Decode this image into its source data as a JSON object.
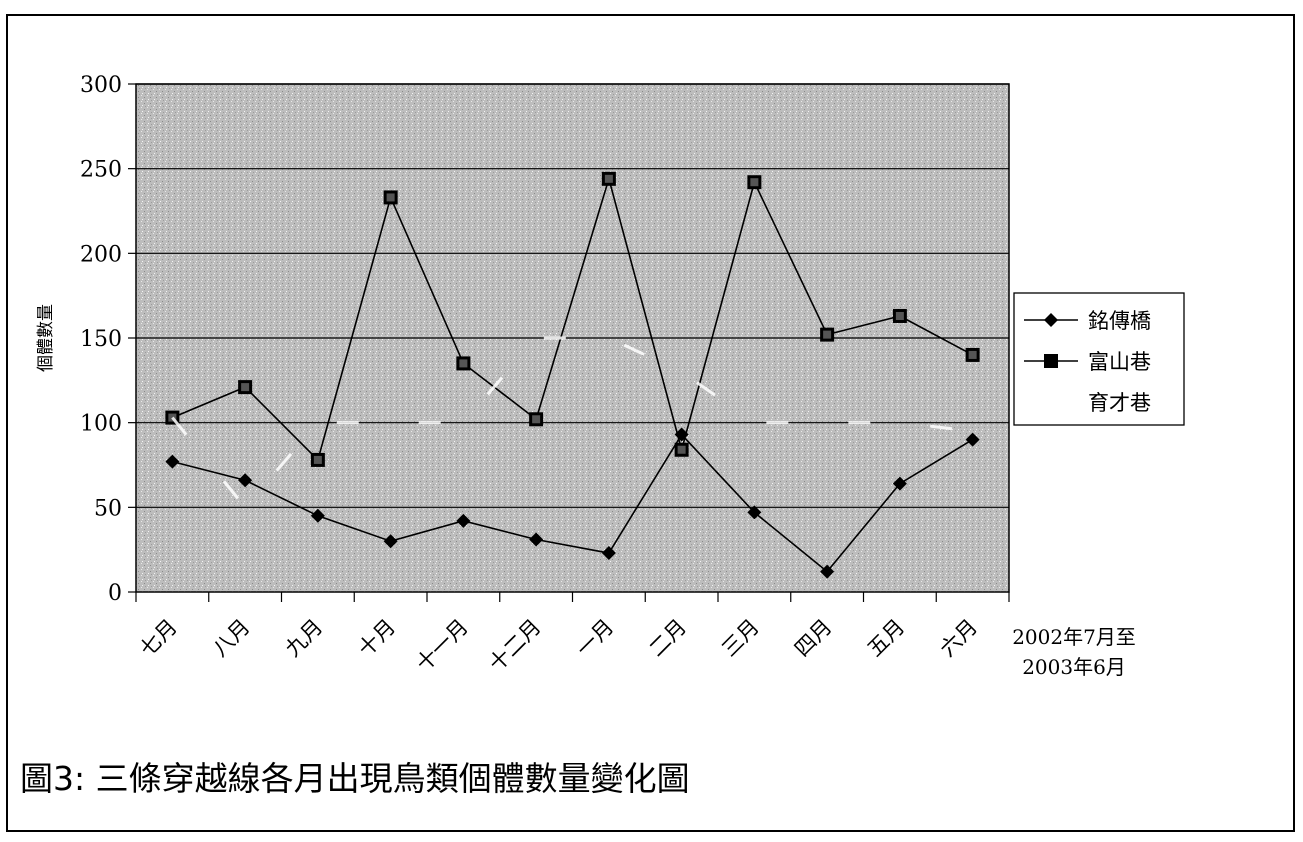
{
  "chart_data": {
    "type": "line",
    "title": "",
    "caption": "圖3: 三條穿越線各月出現鳥類個體數量變化圖",
    "ylabel": "個體數量",
    "xlabel_note": [
      "2002年7月至",
      "2003年6月"
    ],
    "categories": [
      "七月",
      "八月",
      "九月",
      "十月",
      "十一月",
      "十二月",
      "一月",
      "二月",
      "三月",
      "四月",
      "五月",
      "六月"
    ],
    "ylim": [
      0,
      300
    ],
    "yticks": [
      0,
      50,
      100,
      150,
      200,
      250,
      300
    ],
    "grid": true,
    "legend_position": "right",
    "series": [
      {
        "name": "銘傳橋",
        "marker": "diamond",
        "color": "#000000",
        "values": [
          77,
          66,
          45,
          30,
          42,
          31,
          23,
          93,
          47,
          12,
          64,
          90
        ]
      },
      {
        "name": "富山巷",
        "marker": "square",
        "color": "#000000",
        "values": [
          103,
          121,
          78,
          233,
          135,
          102,
          244,
          84,
          242,
          152,
          163,
          140
        ]
      },
      {
        "name": "育才巷",
        "marker": "none",
        "color": "#ffffff",
        "values": [
          103,
          50,
          100,
          100,
          100,
          150,
          150,
          130,
          100,
          100,
          100,
          95
        ]
      }
    ],
    "plot_background": "#bdbdbd"
  }
}
